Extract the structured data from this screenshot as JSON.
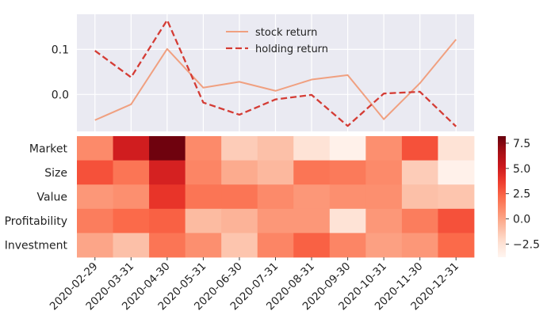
{
  "chart_data": [
    {
      "type": "line",
      "x": [
        "2020-02-29",
        "2020-03-31",
        "2020-04-30",
        "2020-05-31",
        "2020-06-30",
        "2020-07-31",
        "2020-08-31",
        "2020-09-30",
        "2020-10-31",
        "2020-11-30",
        "2020-12-31"
      ],
      "series": [
        {
          "name": "stock return",
          "style": "solid",
          "color": "#f0a080",
          "values": [
            -0.057,
            -0.022,
            0.101,
            0.015,
            0.028,
            0.008,
            0.033,
            0.043,
            -0.055,
            0.025,
            0.122
          ]
        },
        {
          "name": "holding return",
          "style": "dashed",
          "color": "#d43c35",
          "values": [
            0.097,
            0.038,
            0.165,
            -0.018,
            -0.045,
            -0.011,
            -0.001,
            -0.07,
            0.002,
            0.006,
            -0.071
          ]
        }
      ],
      "yticks": [
        0.0,
        0.1
      ],
      "ytick_labels": [
        "0.0",
        "0.1"
      ],
      "ylim": [
        -0.082,
        0.178
      ],
      "grid": true,
      "legend": "top-center"
    },
    {
      "type": "heatmap",
      "rows": [
        "Market",
        "Size",
        "Value",
        "Profitability",
        "Investment"
      ],
      "columns": [
        "2020-02-29",
        "2020-03-31",
        "2020-04-30",
        "2020-05-31",
        "2020-06-30",
        "2020-07-31",
        "2020-08-31",
        "2020-09-30",
        "2020-10-31",
        "2020-11-30",
        "2020-12-31"
      ],
      "values": [
        [
          1.0,
          5.0,
          8.0,
          1.0,
          -1.5,
          -1.0,
          -2.5,
          -3.5,
          0.8,
          3.0,
          -2.5
        ],
        [
          3.0,
          1.8,
          4.8,
          1.2,
          -0.2,
          -0.7,
          1.8,
          1.6,
          1.0,
          -1.5,
          -3.5
        ],
        [
          0.5,
          0.8,
          4.0,
          1.8,
          1.8,
          1.0,
          0.5,
          0.8,
          0.8,
          -1.0,
          -1.2
        ],
        [
          1.5,
          2.2,
          2.5,
          -0.8,
          -0.5,
          0.5,
          0.5,
          -2.5,
          0.5,
          1.5,
          3.0
        ],
        [
          0.0,
          -1.0,
          1.8,
          0.8,
          -1.2,
          1.2,
          2.5,
          1.2,
          0.2,
          0.5,
          2.2
        ]
      ],
      "vmin": -3.8,
      "vmax": 8.2,
      "colorbar_ticks": [
        -2.5,
        0.0,
        2.5,
        5.0,
        7.5
      ],
      "colorbar_tick_labels": [
        "−2.5",
        "0.0",
        "2.5",
        "5.0",
        "7.5"
      ],
      "colormap": "Reds"
    }
  ]
}
